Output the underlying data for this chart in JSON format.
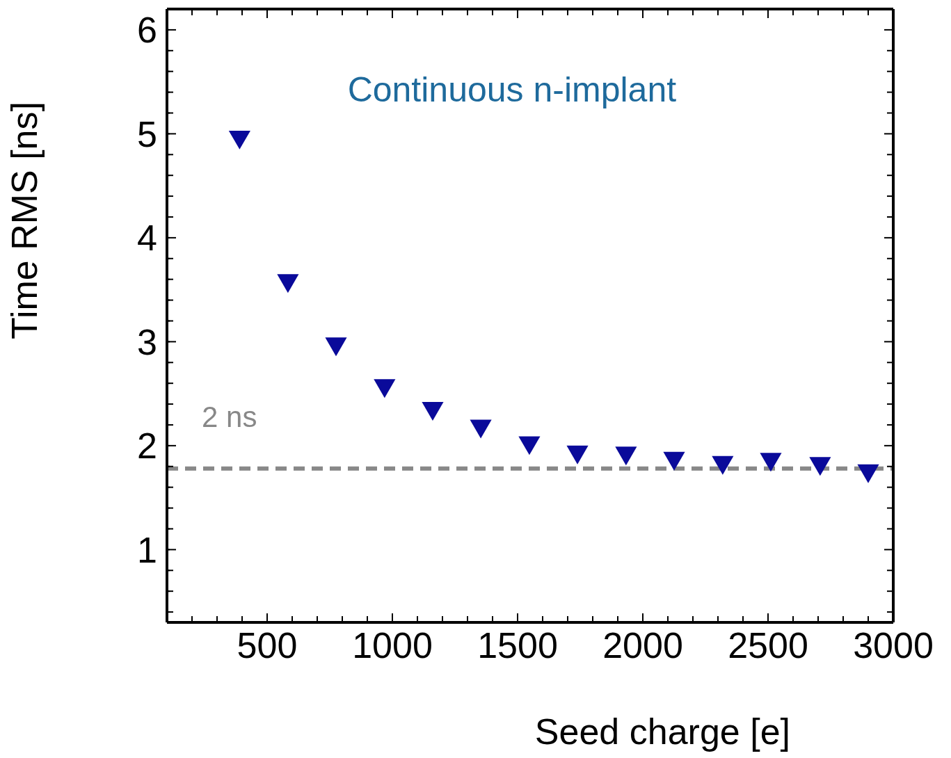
{
  "chart_data": {
    "type": "scatter",
    "xlabel": "Seed charge [e]",
    "ylabel": "Time RMS [ns]",
    "annotations": [
      "Continuous n-implant"
    ],
    "x": [
      390,
      583,
      775,
      969,
      1161,
      1353,
      1547,
      1739,
      1933,
      2125,
      2319,
      2511,
      2708,
      2900
    ],
    "series": [
      {
        "color": "#0a0a9a",
        "values": [
          4.97,
          3.59,
          2.98,
          2.58,
          2.36,
          2.19,
          2.03,
          1.94,
          1.93,
          1.88,
          1.84,
          1.87,
          1.83,
          1.76
        ]
      }
    ],
    "marker": "triangle",
    "xlim": [
      100,
      3000
    ],
    "ylim": [
      0.3,
      6.2
    ],
    "xticks": [
      {
        "value": 200,
        "label": null
      },
      {
        "value": 300,
        "label": null
      },
      {
        "value": 400,
        "label": null
      },
      500,
      {
        "value": 600,
        "label": null
      },
      {
        "value": 700,
        "label": null
      },
      {
        "value": 800,
        "label": null
      },
      {
        "value": 900,
        "label": null
      },
      1000,
      {
        "value": 1100,
        "label": null
      },
      {
        "value": 1200,
        "label": null
      },
      {
        "value": 1300,
        "label": null
      },
      {
        "value": 1400,
        "label": null
      },
      1500,
      {
        "value": 1600,
        "label": null
      },
      {
        "value": 1700,
        "label": null
      },
      {
        "value": 1800,
        "label": null
      },
      {
        "value": 1900,
        "label": null
      },
      2000,
      {
        "value": 2100,
        "label": null
      },
      {
        "value": 2200,
        "label": null
      },
      {
        "value": 2300,
        "label": null
      },
      {
        "value": 2400,
        "label": null
      },
      2500,
      {
        "value": 2600,
        "label": null
      },
      {
        "value": 2700,
        "label": null
      },
      {
        "value": 2800,
        "label": null
      },
      {
        "value": 2900,
        "label": null
      },
      3000
    ],
    "yticks": [
      {
        "value": 0.4,
        "label": null
      },
      {
        "value": 0.6,
        "label": null
      },
      {
        "value": 0.8,
        "label": null
      },
      1,
      {
        "value": 1.2,
        "label": null
      },
      {
        "value": 1.4,
        "label": null
      },
      {
        "value": 1.6,
        "label": null
      },
      {
        "value": 1.8,
        "label": null
      },
      2,
      {
        "value": 2.2,
        "label": null
      },
      {
        "value": 2.4,
        "label": null
      },
      {
        "value": 2.6,
        "label": null
      },
      {
        "value": 2.8,
        "label": null
      },
      3,
      {
        "value": 3.2,
        "label": null
      },
      {
        "value": 3.4,
        "label": null
      },
      {
        "value": 3.6,
        "label": null
      },
      {
        "value": 3.8,
        "label": null
      },
      4,
      {
        "value": 4.2,
        "label": null
      },
      {
        "value": 4.4,
        "label": null
      },
      {
        "value": 4.6,
        "label": null
      },
      {
        "value": 4.8,
        "label": null
      },
      5,
      {
        "value": 5.2,
        "label": null
      },
      {
        "value": 5.4,
        "label": null
      },
      {
        "value": 5.6,
        "label": null
      },
      {
        "value": 5.8,
        "label": null
      },
      6,
      {
        "value": 6.2,
        "label": null
      }
    ],
    "ref_lines": [
      {
        "axis": "y",
        "value": 1.78,
        "label": "2 ns",
        "color": "#888888",
        "line_style": "dashed"
      }
    ]
  }
}
